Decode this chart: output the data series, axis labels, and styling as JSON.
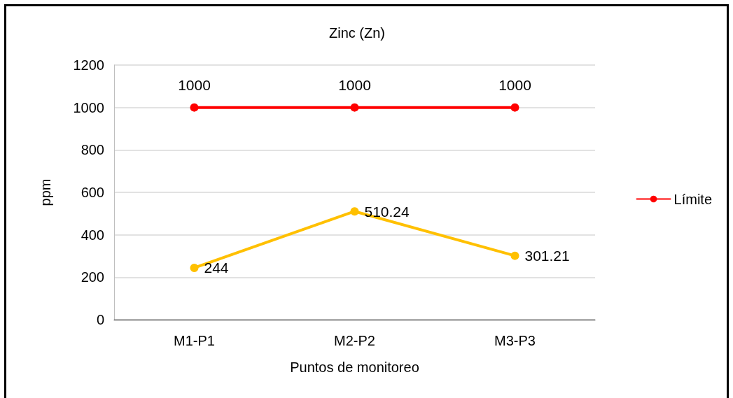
{
  "chart_data": {
    "type": "line",
    "title": "Zinc (Zn)",
    "xlabel": "Puntos de monitoreo",
    "ylabel": "ppm",
    "categories": [
      "M1-P1",
      "M2-P2",
      "M3-P3"
    ],
    "series": [
      {
        "name": "Límite",
        "color": "#ff0000",
        "values": [
          1000,
          1000,
          1000
        ]
      },
      {
        "color": "#ffc000",
        "values": [
          244,
          510.24,
          301.21
        ]
      }
    ],
    "ylim": [
      0,
      1200
    ],
    "yticks": [
      0,
      200,
      400,
      600,
      800,
      1000,
      1200
    ],
    "grid": "y",
    "legend": "right",
    "marker": "circle",
    "line_style": "solid",
    "data_labels": true
  }
}
